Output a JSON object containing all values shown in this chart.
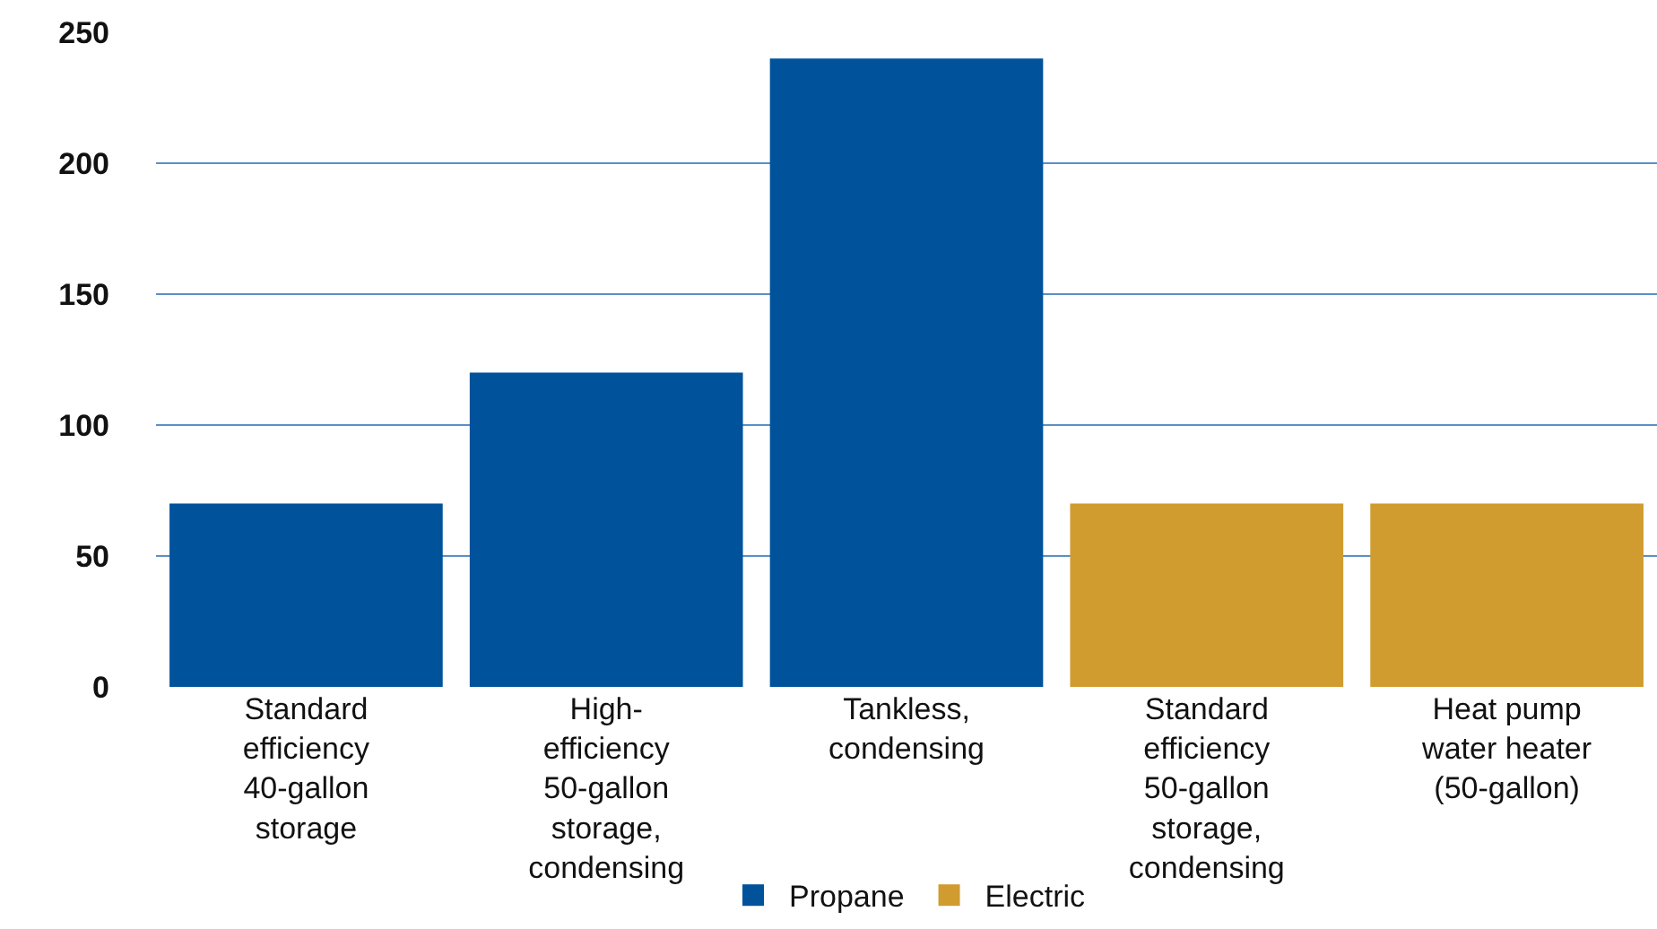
{
  "chart_data": {
    "type": "bar",
    "categories": [
      "Standard efficiency 40-gallon storage",
      "High-efficiency 50-gallon storage, condensing",
      "Tankless, condensing",
      "Standard efficiency 50-gallon storage, condensing",
      "Heat pump water heater (50-gallon)"
    ],
    "series": [
      {
        "name": "Propane",
        "color": "#00539b",
        "values": [
          70,
          120,
          240,
          null,
          null
        ]
      },
      {
        "name": "Electric",
        "color": "#d19c2f",
        "values": [
          null,
          null,
          null,
          70,
          70
        ]
      }
    ],
    "ylim": [
      0,
      250
    ],
    "yticks": [
      0,
      50,
      100,
      150,
      200,
      250
    ],
    "grid": "y",
    "legend": "bottom"
  }
}
